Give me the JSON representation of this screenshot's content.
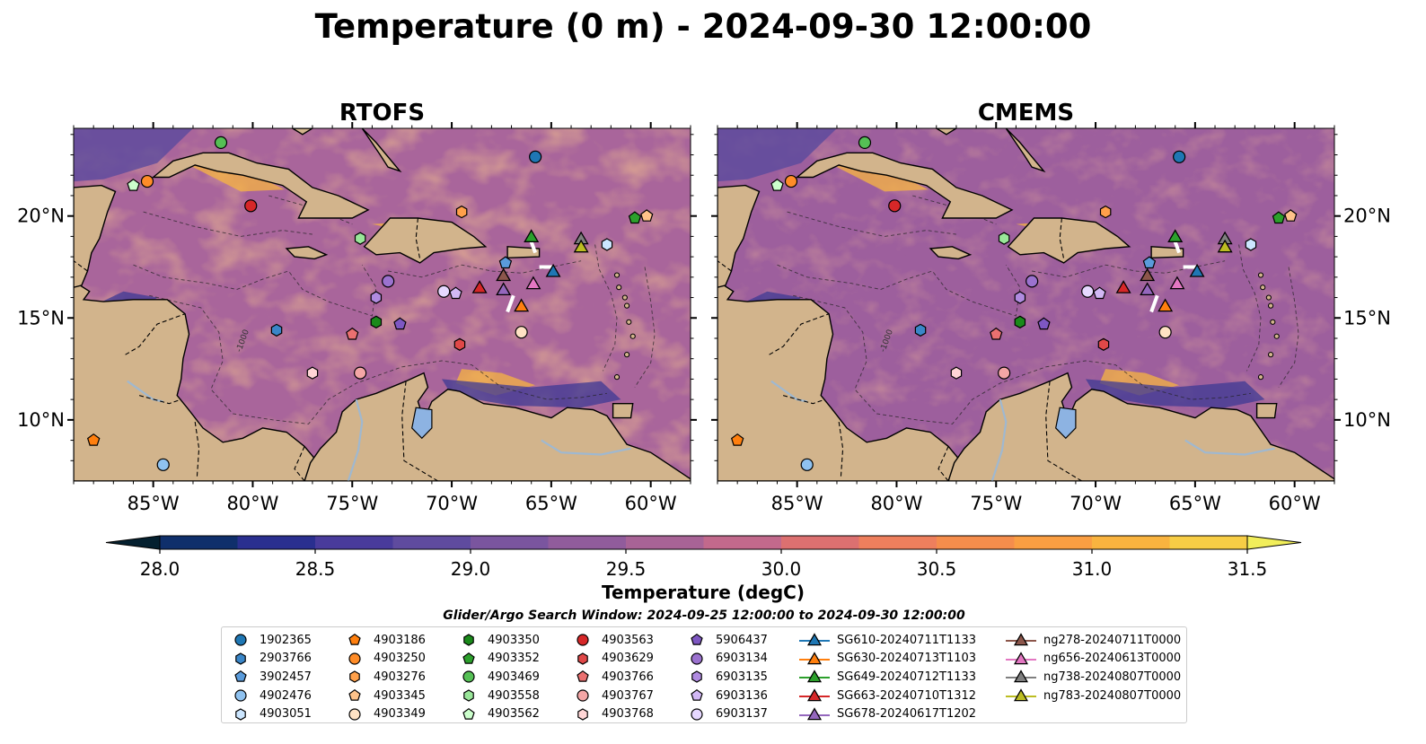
{
  "title": "Temperature (0 m) - 2024-09-30 12:00:00",
  "search_window": "Glider/Argo Search Window: 2024-09-25 12:00:00 to 2024-09-30 12:00:00",
  "colors": {
    "land": "#d2b48c",
    "lake": "#8db3e2",
    "river": "#9fb8d0",
    "colormap_thermal": [
      "#04202f",
      "#0f2f6b",
      "#2a2f8f",
      "#493b9b",
      "#5f4b9f",
      "#7a559f",
      "#915c9c",
      "#a86396",
      "#c2698c",
      "#dc7070",
      "#ee7f5d",
      "#f58d4c",
      "#fa9e42",
      "#f9b33f",
      "#f7cd45",
      "#f1ee5a"
    ]
  },
  "chart_data": [
    {
      "type": "heatmap",
      "panel": "left",
      "title": "RTOFS",
      "x_ticks": [
        "85°W",
        "80°W",
        "75°W",
        "70°W",
        "65°W",
        "60°W"
      ],
      "x_tick_values": [
        -85,
        -80,
        -75,
        -70,
        -65,
        -60
      ],
      "y_ticks": [
        "10°N",
        "15°N",
        "20°N"
      ],
      "y_tick_values": [
        10,
        15,
        20
      ],
      "xlim": [
        -89,
        -58
      ],
      "ylim": [
        7,
        24.3
      ],
      "field_range": [
        28.0,
        31.5
      ]
    },
    {
      "type": "heatmap",
      "panel": "right",
      "title": "CMEMS",
      "x_ticks": [
        "85°W",
        "80°W",
        "75°W",
        "70°W",
        "65°W",
        "60°W"
      ],
      "x_tick_values": [
        -85,
        -80,
        -75,
        -70,
        -65,
        -60
      ],
      "y_ticks": [
        "10°N",
        "15°N",
        "20°N"
      ],
      "y_tick_values": [
        10,
        15,
        20
      ],
      "xlim": [
        -89,
        -58
      ],
      "ylim": [
        7,
        24.3
      ],
      "field_range": [
        28.0,
        31.5
      ]
    }
  ],
  "colorbar": {
    "label": "Temperature (degC)",
    "min": 28.0,
    "max": 31.5,
    "tick_labels": [
      "28.0",
      "28.5",
      "29.0",
      "29.5",
      "30.0",
      "30.5",
      "31.0",
      "31.5"
    ],
    "tick_values": [
      28.0,
      28.5,
      29.0,
      29.5,
      30.0,
      30.5,
      31.0,
      31.5
    ],
    "extend": "both"
  },
  "contour_label": "-1000",
  "observations": [
    {
      "name": "1902365",
      "marker": "circle",
      "color": "#1f77b4",
      "lon": -65.8,
      "lat": 22.9
    },
    {
      "name": "2903766",
      "marker": "hexagon",
      "color": "#3a86c8",
      "lon": -78.8,
      "lat": 14.4
    },
    {
      "name": "3902457",
      "marker": "pentagon",
      "color": "#5a9bdb",
      "lon": -67.3,
      "lat": 17.7
    },
    {
      "name": "4902476",
      "marker": "circle",
      "color": "#8fc2f0",
      "lon": -84.5,
      "lat": 7.8
    },
    {
      "name": "4903051",
      "marker": "hexagon",
      "color": "#cce6ff",
      "lon": -62.2,
      "lat": 18.6
    },
    {
      "name": "4903186",
      "marker": "pentagon",
      "color": "#ff7f0e",
      "lon": -88.0,
      "lat": 9.0
    },
    {
      "name": "4903250",
      "marker": "circle",
      "color": "#ff8c28",
      "lon": -85.3,
      "lat": 21.7
    },
    {
      "name": "4903276",
      "marker": "hexagon",
      "color": "#ffa04a",
      "lon": -69.5,
      "lat": 20.2
    },
    {
      "name": "4903345",
      "marker": "pentagon",
      "color": "#ffc38a",
      "lon": -60.2,
      "lat": 20.0
    },
    {
      "name": "4903349",
      "marker": "circle",
      "color": "#ffe2c4",
      "lon": -66.5,
      "lat": 14.3
    },
    {
      "name": "4903350",
      "marker": "hexagon",
      "color": "#1a8a1a",
      "lon": -73.8,
      "lat": 14.8
    },
    {
      "name": "4903352",
      "marker": "pentagon",
      "color": "#2ca02c",
      "lon": -60.8,
      "lat": 19.9
    },
    {
      "name": "4903469",
      "marker": "circle",
      "color": "#55c055",
      "lon": -81.6,
      "lat": 23.6
    },
    {
      "name": "4903558",
      "marker": "hexagon",
      "color": "#99e699",
      "lon": -74.6,
      "lat": 18.9
    },
    {
      "name": "4903562",
      "marker": "pentagon",
      "color": "#ccffcc",
      "lon": -86.0,
      "lat": 21.5
    },
    {
      "name": "4903563",
      "marker": "circle",
      "color": "#d62728",
      "lon": -80.1,
      "lat": 20.5
    },
    {
      "name": "4903629",
      "marker": "hexagon",
      "color": "#e04848",
      "lon": -69.6,
      "lat": 13.7
    },
    {
      "name": "4903766",
      "marker": "pentagon",
      "color": "#ea7070",
      "lon": -75.0,
      "lat": 14.2
    },
    {
      "name": "4903767",
      "marker": "circle",
      "color": "#f4a6a6",
      "lon": -74.6,
      "lat": 12.3
    },
    {
      "name": "4903768",
      "marker": "hexagon",
      "color": "#ffd6d6",
      "lon": -77.0,
      "lat": 12.3
    },
    {
      "name": "5906437",
      "marker": "pentagon",
      "color": "#7e57c2",
      "lon": -72.6,
      "lat": 14.7
    },
    {
      "name": "6903134",
      "marker": "circle",
      "color": "#9b72cf",
      "lon": -73.2,
      "lat": 16.8
    },
    {
      "name": "6903135",
      "marker": "hexagon",
      "color": "#b08be0",
      "lon": -73.8,
      "lat": 16.0
    },
    {
      "name": "6903136",
      "marker": "pentagon",
      "color": "#d2b8f5",
      "lon": -69.8,
      "lat": 16.2
    },
    {
      "name": "6903137",
      "marker": "circle",
      "color": "#e6d8ff",
      "lon": -70.4,
      "lat": 16.3
    }
  ],
  "gliders": [
    {
      "name": "SG610-20240711T1133",
      "color": "#1f77b4",
      "lon": -64.9,
      "lat": 17.3
    },
    {
      "name": "SG630-20240713T1103",
      "color": "#ff7f0e",
      "lon": -66.5,
      "lat": 15.6
    },
    {
      "name": "SG649-20240712T1133",
      "color": "#2ca02c",
      "lon": -66.0,
      "lat": 19.0
    },
    {
      "name": "SG663-20240710T1312",
      "color": "#d62728",
      "lon": -68.6,
      "lat": 16.5
    },
    {
      "name": "SG678-20240617T1202",
      "color": "#9467bd",
      "lon": -67.4,
      "lat": 16.4
    },
    {
      "name": "ng278-20240711T0000",
      "color": "#8c564b",
      "lon": -67.4,
      "lat": 17.1
    },
    {
      "name": "ng656-20240613T0000",
      "color": "#e377c2",
      "lon": -65.9,
      "lat": 16.7
    },
    {
      "name": "ng738-20240807T0000",
      "color": "#7f7f7f",
      "lon": -63.5,
      "lat": 18.9
    },
    {
      "name": "ng783-20240807T0000",
      "color": "#bcbd22",
      "lon": -63.5,
      "lat": 18.5
    }
  ]
}
